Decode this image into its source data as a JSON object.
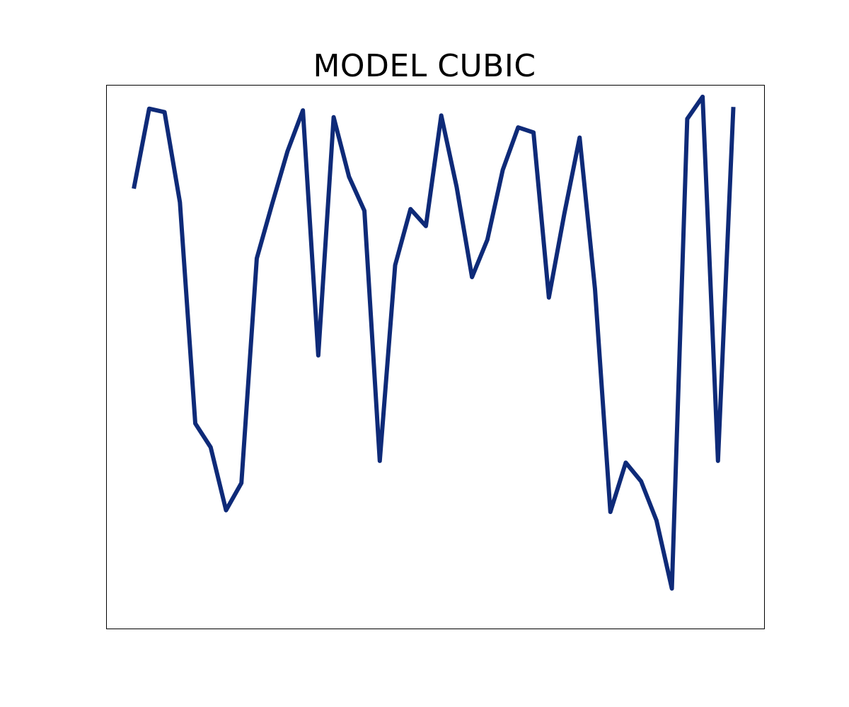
{
  "chart_data": {
    "type": "line",
    "title": "MODEL CUBIC",
    "xlabel": "",
    "ylabel": "",
    "grid": false,
    "xlim": [
      -1.8,
      41
    ],
    "ylim": [
      -0.95,
      31.0
    ],
    "series": [
      {
        "color": "#0e2a78",
        "x": [
          0,
          1,
          2,
          3,
          4,
          5,
          6,
          7,
          8,
          9,
          10,
          11,
          12,
          13,
          14,
          15,
          16,
          17,
          18,
          19,
          20,
          21,
          22,
          23,
          24,
          25,
          26,
          27,
          28,
          29,
          30,
          31,
          32,
          33,
          34,
          35,
          36,
          37,
          38,
          39
        ],
        "values": [
          24.9,
          29.6,
          29.4,
          24.1,
          11.1,
          9.7,
          6.0,
          7.6,
          20.8,
          24.0,
          27.1,
          29.5,
          15.1,
          29.1,
          25.6,
          23.6,
          8.9,
          20.4,
          23.7,
          22.7,
          29.2,
          25.0,
          19.7,
          21.9,
          26.0,
          28.5,
          28.2,
          18.5,
          23.4,
          27.9,
          19.0,
          5.9,
          8.8,
          7.7,
          5.4,
          1.4,
          29.0,
          30.3,
          8.9,
          29.7
        ]
      }
    ]
  },
  "colors": {
    "line": "#0e2a78",
    "axes_frame": "#000000",
    "background": "#ffffff"
  }
}
